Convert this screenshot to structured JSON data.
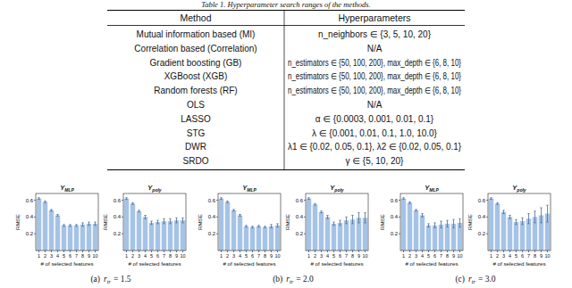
{
  "table": {
    "caption": "Table 1. Hyperparameter search ranges of the methods.",
    "header": [
      "Method",
      "Hyperparameters"
    ],
    "rows": [
      [
        "Mutual information based (MI)",
        "n_neighbors ∈ {3, 5, 10, 20}"
      ],
      [
        "Correlation based (Correlation)",
        "N/A"
      ],
      [
        "Gradient boosting (GB)",
        "n_estimators ∈ {50, 100, 200}, max_depth ∈ {6, 8, 10}"
      ],
      [
        "XGBoost (XGB)",
        "n_estimators ∈ {50, 100, 200}, max_depth ∈ {6, 8, 10}"
      ],
      [
        "Random forests (RF)",
        "n_estimators ∈ {50, 100, 200}, max_depth ∈ {6, 8, 10}"
      ],
      [
        "OLS",
        "N/A"
      ],
      [
        "LASSO",
        "α ∈ {0.0003, 0.001, 0.01, 0.1}"
      ],
      [
        "STG",
        "λ ∈ {0.001, 0.01, 0.1, 1.0, 10.0}"
      ],
      [
        "DWR",
        "λ1 ∈ {0.02, 0.05, 0.1}, λ2 ∈ {0.02, 0.05, 0.1}"
      ],
      [
        "SRDO",
        "γ ∈ {5, 10, 20}"
      ]
    ]
  },
  "subfigures": [
    {
      "label": "(a)",
      "symbol": "r",
      "subscript": "tr",
      "value": "= 1.5"
    },
    {
      "label": "(b)",
      "symbol": "r",
      "subscript": "tr",
      "value": "= 2.0"
    },
    {
      "label": "(c)",
      "symbol": "r",
      "subscript": "tr",
      "value": "= 3.0"
    }
  ],
  "chart_data": [
    {
      "type": "bar",
      "title": "Y",
      "title_subscript": "MLP",
      "x_label": "# of selected features",
      "y_label": "RMSE",
      "categories": [
        "1",
        "2",
        "3",
        "4",
        "5",
        "6",
        "7",
        "8",
        "9",
        "10"
      ],
      "values": [
        0.62,
        0.58,
        0.48,
        0.42,
        0.3,
        0.3,
        0.3,
        0.31,
        0.32,
        0.32
      ],
      "errors": [
        0.01,
        0.01,
        0.01,
        0.01,
        0.01,
        0.01,
        0.01,
        0.02,
        0.02,
        0.02
      ],
      "color": "#a5c3e6",
      "ylim": [
        0,
        0.68
      ],
      "yticks": [
        0.2,
        0.4,
        0.6
      ],
      "grid": false
    },
    {
      "type": "bar",
      "title": "Y",
      "title_subscript": "poly",
      "x_label": "# of selected features",
      "y_label": "RMSE",
      "categories": [
        "1",
        "2",
        "3",
        "4",
        "5",
        "6",
        "7",
        "8",
        "9",
        "10"
      ],
      "values": [
        0.62,
        0.56,
        0.47,
        0.4,
        0.33,
        0.34,
        0.35,
        0.35,
        0.36,
        0.36
      ],
      "errors": [
        0.01,
        0.01,
        0.01,
        0.02,
        0.02,
        0.02,
        0.03,
        0.03,
        0.03,
        0.03
      ],
      "color": "#a5c3e6",
      "ylim": [
        0,
        0.68
      ],
      "yticks": [
        0.2,
        0.4,
        0.6
      ],
      "grid": false
    },
    {
      "type": "bar",
      "title": "Y",
      "title_subscript": "MLP",
      "x_label": "# of selected features",
      "y_label": "RMSE",
      "categories": [
        "1",
        "2",
        "3",
        "4",
        "5",
        "6",
        "7",
        "8",
        "9",
        "10"
      ],
      "values": [
        0.62,
        0.58,
        0.48,
        0.42,
        0.29,
        0.28,
        0.29,
        0.28,
        0.29,
        0.3
      ],
      "errors": [
        0.01,
        0.01,
        0.01,
        0.01,
        0.01,
        0.01,
        0.01,
        0.01,
        0.02,
        0.02
      ],
      "color": "#a5c3e6",
      "ylim": [
        0,
        0.68
      ],
      "yticks": [
        0.2,
        0.4,
        0.6
      ],
      "grid": false
    },
    {
      "type": "bar",
      "title": "Y",
      "title_subscript": "poly",
      "x_label": "# of selected features",
      "y_label": "RMSE",
      "categories": [
        "1",
        "2",
        "3",
        "4",
        "5",
        "6",
        "7",
        "8",
        "9",
        "10"
      ],
      "values": [
        0.62,
        0.55,
        0.46,
        0.4,
        0.32,
        0.33,
        0.36,
        0.37,
        0.39,
        0.39
      ],
      "errors": [
        0.01,
        0.01,
        0.01,
        0.02,
        0.02,
        0.03,
        0.04,
        0.05,
        0.06,
        0.06
      ],
      "color": "#a5c3e6",
      "ylim": [
        0,
        0.68
      ],
      "yticks": [
        0.2,
        0.4,
        0.6
      ],
      "grid": false
    },
    {
      "type": "bar",
      "title": "Y",
      "title_subscript": "MLP",
      "x_label": "# of selected features",
      "y_label": "RMSE",
      "categories": [
        "1",
        "2",
        "3",
        "4",
        "5",
        "6",
        "7",
        "8",
        "9",
        "10"
      ],
      "values": [
        0.62,
        0.57,
        0.48,
        0.42,
        0.3,
        0.3,
        0.31,
        0.32,
        0.32,
        0.33
      ],
      "errors": [
        0.01,
        0.01,
        0.01,
        0.02,
        0.02,
        0.03,
        0.04,
        0.04,
        0.05,
        0.05
      ],
      "color": "#a5c3e6",
      "ylim": [
        0,
        0.68
      ],
      "yticks": [
        0.2,
        0.4,
        0.6
      ],
      "grid": false
    },
    {
      "type": "bar",
      "title": "Y",
      "title_subscript": "poly",
      "x_label": "# of selected features",
      "y_label": "RMSE",
      "categories": [
        "1",
        "2",
        "3",
        "4",
        "5",
        "6",
        "7",
        "8",
        "9",
        "10"
      ],
      "values": [
        0.62,
        0.56,
        0.46,
        0.4,
        0.34,
        0.35,
        0.38,
        0.4,
        0.42,
        0.44
      ],
      "errors": [
        0.01,
        0.01,
        0.02,
        0.02,
        0.03,
        0.04,
        0.06,
        0.07,
        0.09,
        0.1
      ],
      "color": "#a5c3e6",
      "ylim": [
        0,
        0.68
      ],
      "yticks": [
        0.2,
        0.4,
        0.6
      ],
      "grid": false
    }
  ]
}
